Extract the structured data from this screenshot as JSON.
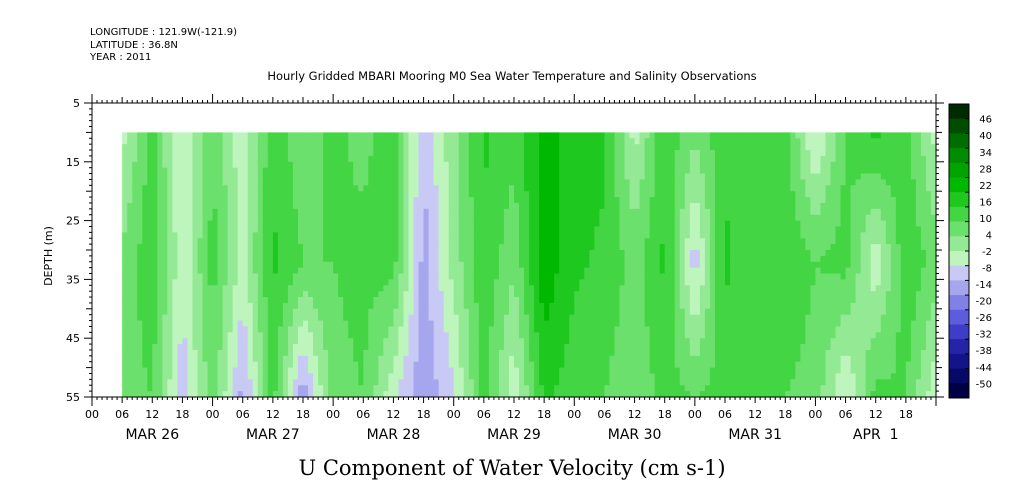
{
  "header": {
    "longitude": "LONGITUDE : 121.9W(-121.9)",
    "latitude": "LATITUDE : 36.8N",
    "year": "YEAR : 2011"
  },
  "chart_data": {
    "type": "heatmap",
    "title": "Hourly Gridded MBARI Mooring M0 Sea Water Temperature and Salinity Observations",
    "variable_label": "U Component of Water Velocity (cm s-1)",
    "ylabel": "DEPTH (m)",
    "ylim": [
      5,
      55
    ],
    "y_inverted": true,
    "y_ticks": [
      5,
      15,
      25,
      35,
      45,
      55
    ],
    "x_hour_labels": [
      "00",
      "06",
      "12",
      "18",
      "00",
      "06",
      "12",
      "18",
      "00",
      "06",
      "12",
      "18",
      "00",
      "06",
      "12",
      "18",
      "00",
      "06",
      "12",
      "18",
      "00",
      "06",
      "12",
      "18",
      "00",
      "06",
      "12",
      "18"
    ],
    "x_day_labels": [
      "MAR 26",
      "MAR 27",
      "MAR 28",
      "MAR 29",
      "MAR 30",
      "MAR 31",
      "APR  1"
    ],
    "x_range_hours": [
      0,
      168
    ],
    "data_extent": {
      "start_hour": 6,
      "end_hour": 168,
      "top_depth": 10,
      "bottom_depth": 55
    },
    "grid": false,
    "colorbar": {
      "labels": [
        "46",
        "40",
        "34",
        "28",
        "22",
        "16",
        "10",
        "4",
        "-2",
        "-8",
        "-14",
        "-20",
        "-26",
        "-32",
        "-38",
        "-44",
        "-50"
      ],
      "range": [
        -50,
        50
      ],
      "colors": [
        "#002a00",
        "#004d00",
        "#006d00",
        "#008c00",
        "#00a300",
        "#00b800",
        "#1fc81f",
        "#44d544",
        "#6ce06c",
        "#94ea94",
        "#bdf5bd",
        "#c9c9f5",
        "#a6a6ee",
        "#8080e6",
        "#5c5cdd",
        "#3d3dc8",
        "#2424a8",
        "#13138a",
        "#080866",
        "#000044"
      ]
    },
    "profiles": [
      {
        "hour": 6,
        "values": [
          -2,
          6,
          8
        ]
      },
      {
        "hour": 12,
        "values": [
          12,
          14,
          10
        ]
      },
      {
        "hour": 18,
        "values": [
          -6,
          -4,
          -8
        ]
      },
      {
        "hour": 24,
        "values": [
          10,
          12,
          8
        ]
      },
      {
        "hour": 30,
        "values": [
          -4,
          -2,
          -12
        ]
      },
      {
        "hour": 36,
        "values": [
          14,
          16,
          12
        ]
      },
      {
        "hour": 42,
        "values": [
          6,
          10,
          -14
        ]
      },
      {
        "hour": 48,
        "values": [
          12,
          10,
          8
        ]
      },
      {
        "hour": 54,
        "values": [
          8,
          12,
          10
        ]
      },
      {
        "hour": 60,
        "values": [
          14,
          12,
          -4
        ]
      },
      {
        "hour": 66,
        "values": [
          -10,
          -12,
          -14
        ]
      },
      {
        "hour": 72,
        "values": [
          4,
          2,
          -6
        ]
      },
      {
        "hour": 78,
        "values": [
          16,
          14,
          12
        ]
      },
      {
        "hour": 84,
        "values": [
          12,
          6,
          -4
        ]
      },
      {
        "hour": 90,
        "values": [
          22,
          24,
          16
        ]
      },
      {
        "hour": 96,
        "values": [
          18,
          16,
          12
        ]
      },
      {
        "hour": 102,
        "values": [
          16,
          14,
          10
        ]
      },
      {
        "hour": 108,
        "values": [
          -2,
          8,
          6
        ]
      },
      {
        "hour": 114,
        "values": [
          14,
          16,
          12
        ]
      },
      {
        "hour": 120,
        "values": [
          6,
          -8,
          10
        ]
      },
      {
        "hour": 126,
        "values": [
          14,
          16,
          12
        ]
      },
      {
        "hour": 132,
        "values": [
          10,
          12,
          14
        ]
      },
      {
        "hour": 138,
        "values": [
          12,
          14,
          10
        ]
      },
      {
        "hour": 144,
        "values": [
          -6,
          10,
          8
        ]
      },
      {
        "hour": 150,
        "values": [
          10,
          12,
          -6
        ]
      },
      {
        "hour": 156,
        "values": [
          16,
          -4,
          12
        ]
      },
      {
        "hour": 162,
        "values": [
          12,
          14,
          10
        ]
      },
      {
        "hour": 168,
        "values": [
          -2,
          8,
          -4
        ]
      }
    ],
    "profile_depths": [
      10,
      32,
      55
    ]
  }
}
